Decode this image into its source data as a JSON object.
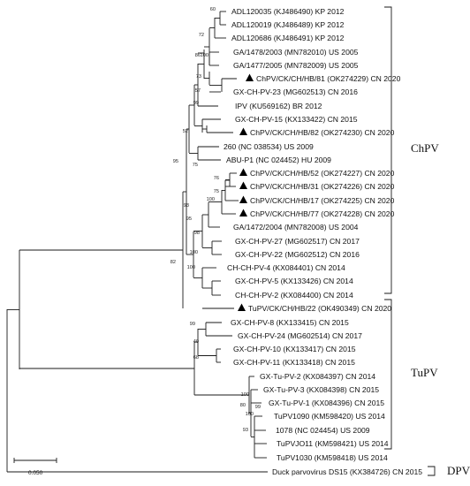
{
  "leaves": [
    {
      "label": "ADL120035 (KJ486490) KP 2012",
      "marked": false
    },
    {
      "label": "ADL120019 (KJ486489) KP 2012",
      "marked": false
    },
    {
      "label": "ADL120686 (KJ486491) KP 2012",
      "marked": false
    },
    {
      "label": "GA/1478/2003 (MN782010) US 2005",
      "marked": false
    },
    {
      "label": "GA/1477/2005 (MN782009) US 2005",
      "marked": false
    },
    {
      "label": "ChPV/CK/CH/HB/81 (OK274229) CN 2020",
      "marked": true
    },
    {
      "label": "GX-CH-PV-23 (MG602513) CN 2016",
      "marked": false
    },
    {
      "label": "IPV (KU569162) BR 2012",
      "marked": false
    },
    {
      "label": "GX-CH-PV-15 (KX133422) CN 2015",
      "marked": false
    },
    {
      "label": "ChPV/CK/CH/HB/82 (OK274230) CN 2020",
      "marked": true
    },
    {
      "label": "260 (NC 038534) US 2009",
      "marked": false
    },
    {
      "label": "ABU-P1 (NC 024452) HU 2009",
      "marked": false
    },
    {
      "label": "ChPV/CK/CH/HB/52 (OK274227) CN 2020",
      "marked": true
    },
    {
      "label": "ChPV/CK/CH/HB/31 (OK274226) CN 2020",
      "marked": true
    },
    {
      "label": "ChPV/CK/CH/HB/17 (OK274225) CN 2020",
      "marked": true
    },
    {
      "label": "ChPV/CK/CH/HB/77 (OK274228) CN 2020",
      "marked": true
    },
    {
      "label": "GA/1472/2004 (MN782008) US 2004",
      "marked": false
    },
    {
      "label": "GX-CH-PV-27 (MG602517) CN 2017",
      "marked": false
    },
    {
      "label": "GX-CH-PV-22 (MG602512) CN 2016",
      "marked": false
    },
    {
      "label": "CH-CH-PV-4 (KX084401) CN 2014",
      "marked": false
    },
    {
      "label": "GX-CH-PV-5 (KX133426) CN 2014",
      "marked": false
    },
    {
      "label": "CH-CH-PV-2 (KX084400) CN 2014",
      "marked": false
    },
    {
      "label": "TuPV/CK/CH/HB/22 (OK490349) CN 2020",
      "marked": true
    },
    {
      "label": "GX-CH-PV-8 (KX133415) CN 2015",
      "marked": false
    },
    {
      "label": "GX-CH-PV-24 (MG602514) CN 2017",
      "marked": false
    },
    {
      "label": "GX-CH-PV-10 (KX133417) CN 2015",
      "marked": false
    },
    {
      "label": "GX-CH-PV-11 (KX133418) CN 2015",
      "marked": false
    },
    {
      "label": "GX-Tu-PV-2 (KX084397) CN 2014",
      "marked": false
    },
    {
      "label": "GX-Tu-PV-3 (KX084398) CN 2015",
      "marked": false
    },
    {
      "label": "GX-Tu-PV-1 (KX084396) CN 2015",
      "marked": false
    },
    {
      "label": "TuPV1090 (KM598420) US 2014",
      "marked": false
    },
    {
      "label": "1078 (NC 024454) US 2009",
      "marked": false
    },
    {
      "label": "TuPVJO11 (KM598421) US 2014",
      "marked": false
    },
    {
      "label": "TuPV1030 (KM598418) US 2014",
      "marked": false
    },
    {
      "label": "Duck parvovirus DS15 (KX384726) CN 2015",
      "marked": false
    }
  ],
  "bootstrap": [
    "60",
    "72",
    "86",
    "100",
    "73",
    "57",
    "99",
    "52",
    "75",
    "76",
    "75",
    "100",
    "95",
    "93",
    "95",
    "98",
    "100",
    "100",
    "82",
    "99",
    "40",
    "68",
    "100",
    "80",
    "99",
    "93",
    "100"
  ],
  "groups": [
    {
      "name": "ChPV"
    },
    {
      "name": "TuPV"
    },
    {
      "name": "DPV"
    }
  ],
  "scale_bar": {
    "label": "0.050"
  },
  "marker_symbol": "▲"
}
